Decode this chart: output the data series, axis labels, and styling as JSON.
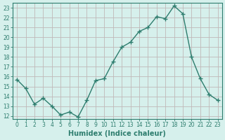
{
  "x": [
    0,
    1,
    2,
    3,
    4,
    5,
    6,
    7,
    8,
    9,
    10,
    11,
    12,
    13,
    14,
    15,
    16,
    17,
    18,
    19,
    20,
    21,
    22,
    23
  ],
  "y": [
    15.7,
    14.8,
    13.2,
    13.8,
    13.0,
    12.1,
    12.4,
    11.9,
    13.6,
    15.6,
    15.8,
    17.5,
    19.0,
    19.5,
    20.6,
    21.0,
    22.1,
    21.9,
    23.2,
    22.4,
    18.0,
    15.8,
    14.2,
    13.6
  ],
  "line_color": "#2e7d6e",
  "marker": "+",
  "marker_size": 4,
  "bg_color": "#d6f0ec",
  "grid_color": "#c0b8b8",
  "xlabel": "Humidex (Indice chaleur)",
  "ylim": [
    11.7,
    23.5
  ],
  "xlim": [
    -0.5,
    23.5
  ],
  "yticks": [
    12,
    13,
    14,
    15,
    16,
    17,
    18,
    19,
    20,
    21,
    22,
    23
  ],
  "xticks": [
    0,
    1,
    2,
    3,
    4,
    5,
    6,
    7,
    8,
    9,
    10,
    11,
    12,
    13,
    14,
    15,
    16,
    17,
    18,
    19,
    20,
    21,
    22,
    23
  ],
  "line_width": 1.0,
  "tick_fontsize": 5.5,
  "xlabel_fontsize": 7,
  "label_color": "#2e7d6e"
}
